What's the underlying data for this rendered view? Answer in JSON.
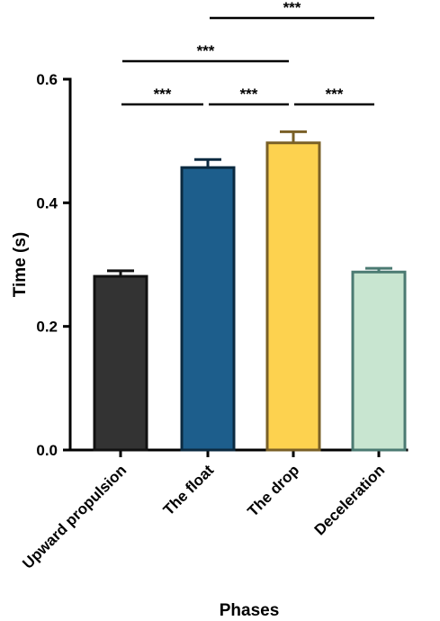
{
  "chart_data": {
    "type": "bar",
    "title": "",
    "xlabel": "Phases",
    "ylabel": "Time (s)",
    "ylim": [
      0,
      0.6
    ],
    "yticks": [
      "0.0",
      "0.2",
      "0.4",
      "0.6"
    ],
    "grid": false,
    "categories": [
      "Upward propulsion",
      "The float",
      "The drop",
      "Deceleration"
    ],
    "values": [
      0.281,
      0.457,
      0.497,
      0.288
    ],
    "errors": [
      0.009,
      0.013,
      0.018,
      0.006
    ],
    "colors": {
      "fill": [
        "#333333",
        "#1d5e8c",
        "#fdd24f",
        "#c8e5d0"
      ],
      "stroke": [
        "#111111",
        "#0b2a40",
        "#7a6027",
        "#4b7a72"
      ]
    },
    "significance": [
      {
        "from": 0,
        "to": 1,
        "label": "***"
      },
      {
        "from": 1,
        "to": 2,
        "label": "***"
      },
      {
        "from": 2,
        "to": 3,
        "label": "***"
      },
      {
        "from": 0,
        "to": 2,
        "label": "***"
      },
      {
        "from": 1,
        "to": 3,
        "label": "***"
      }
    ]
  }
}
